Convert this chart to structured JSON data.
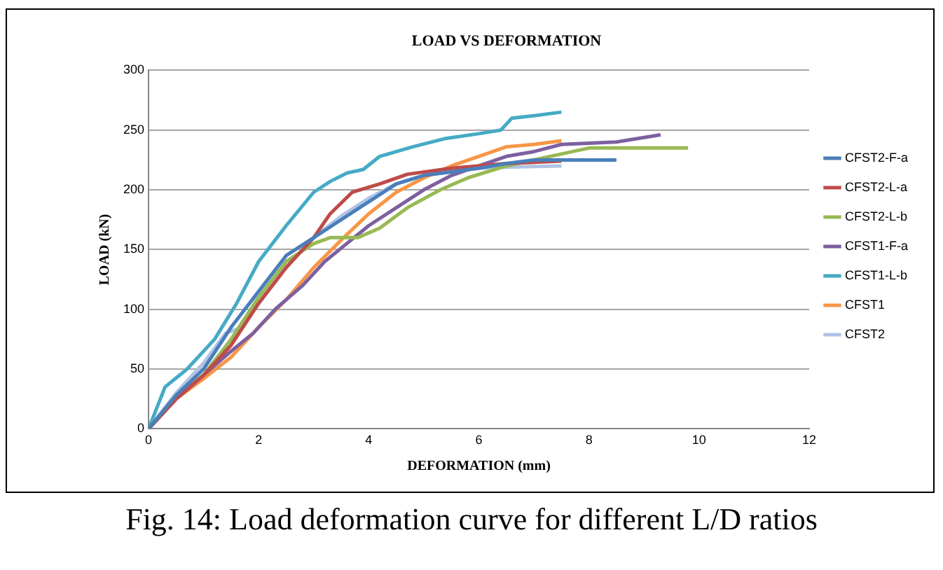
{
  "chart_data": {
    "type": "line",
    "title": "LOAD VS DEFORMATION",
    "xlabel": "DEFORMATION (mm)",
    "ylabel": "LOAD (kN)",
    "xlim": [
      0,
      12
    ],
    "xticks": [
      0,
      2,
      4,
      6,
      8,
      10,
      12
    ],
    "ylim": [
      0,
      300
    ],
    "yticks": [
      0,
      50,
      100,
      150,
      200,
      250,
      300
    ],
    "grid": "y",
    "legend": "right",
    "marker": "none",
    "line_style": "solid",
    "annotations": [
      "Fig. 14:  Load deformation curve for different L/D ratios"
    ],
    "series": [
      {
        "name": "CFST2-F-a",
        "color": "#4a7ebb",
        "x": [
          0,
          0.5,
          1,
          1.5,
          2,
          2.5,
          3,
          3.5,
          4,
          4.5,
          5,
          5.5,
          6,
          6.5,
          7,
          8.5
        ],
        "values": [
          0,
          28,
          50,
          85,
          115,
          145,
          160,
          175,
          190,
          205,
          212,
          215,
          218,
          222,
          225,
          225
        ]
      },
      {
        "name": "CFST2-L-a",
        "color": "#be4b48",
        "x": [
          0,
          0.5,
          1,
          1.5,
          2,
          2.5,
          3,
          3.3,
          3.7,
          4.2,
          4.7,
          5.5,
          6.5,
          7.5
        ],
        "values": [
          0,
          25,
          45,
          70,
          105,
          135,
          160,
          180,
          198,
          205,
          213,
          218,
          222,
          224
        ]
      },
      {
        "name": "CFST2-L-b",
        "color": "#98b954",
        "x": [
          0,
          0.5,
          1,
          1.5,
          2,
          2.5,
          3,
          3.3,
          3.8,
          4.2,
          4.7,
          5.3,
          5.8,
          6.5,
          7,
          7.5,
          8,
          9.8
        ],
        "values": [
          0,
          28,
          45,
          75,
          110,
          140,
          155,
          160,
          160,
          168,
          185,
          200,
          210,
          220,
          225,
          230,
          235,
          235
        ]
      },
      {
        "name": "CFST1-F-a",
        "color": "#7d60a0",
        "x": [
          0,
          0.5,
          1,
          1.5,
          1.9,
          2.3,
          2.8,
          3.2,
          3.6,
          4,
          4.5,
          5,
          5.5,
          6,
          6.5,
          7,
          7.5,
          8.5,
          9.3
        ],
        "values": [
          0,
          25,
          45,
          65,
          80,
          100,
          120,
          140,
          155,
          170,
          185,
          200,
          212,
          220,
          228,
          232,
          238,
          240,
          246
        ]
      },
      {
        "name": "CFST1-L-b",
        "color": "#46aac5",
        "x": [
          0,
          0.3,
          0.7,
          1.2,
          1.6,
          2,
          2.5,
          3,
          3.3,
          3.6,
          3.9,
          4.2,
          4.8,
          5.4,
          6,
          6.4,
          6.6,
          7,
          7.5
        ],
        "values": [
          0,
          35,
          50,
          75,
          105,
          140,
          170,
          198,
          207,
          214,
          217,
          228,
          236,
          243,
          247,
          250,
          260,
          262,
          265
        ]
      },
      {
        "name": "CFST1",
        "color": "#f79646",
        "x": [
          0,
          0.5,
          1,
          1.5,
          2,
          2.5,
          3,
          3.5,
          4,
          4.5,
          5,
          5.5,
          6,
          6.5,
          7,
          7.5
        ],
        "values": [
          0,
          25,
          42,
          60,
          85,
          108,
          135,
          158,
          180,
          198,
          210,
          220,
          228,
          236,
          238,
          241
        ]
      },
      {
        "name": "CFST2",
        "color": "#b0c4e4",
        "x": [
          0,
          0.5,
          1,
          1.4,
          1.7,
          2,
          2.5,
          3,
          3.5,
          4,
          4.5,
          5,
          5.5,
          6,
          6.5,
          7.5
        ],
        "values": [
          0,
          30,
          55,
          80,
          85,
          105,
          135,
          160,
          178,
          193,
          205,
          212,
          216,
          218,
          219,
          220
        ]
      }
    ]
  }
}
